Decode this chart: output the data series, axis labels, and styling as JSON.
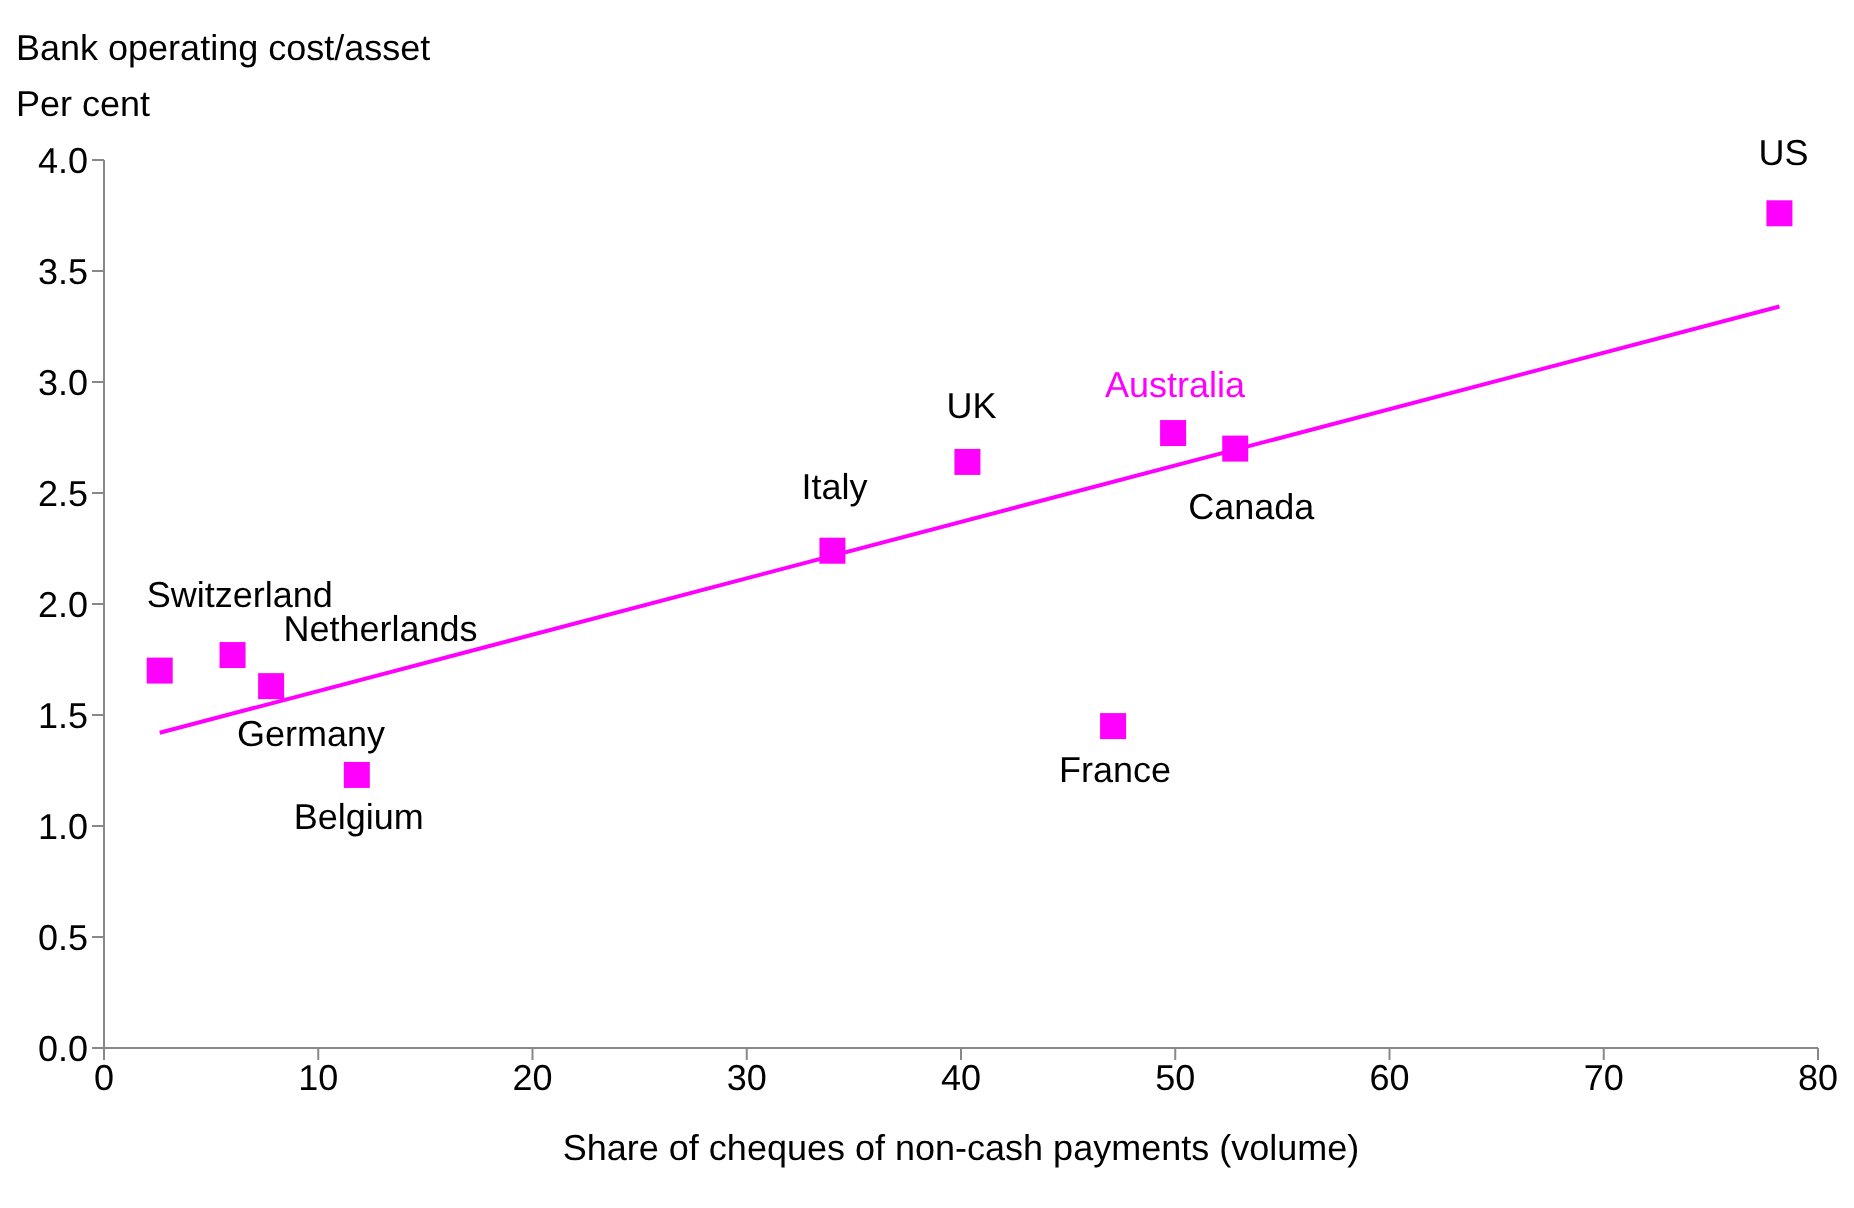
{
  "chart_data": {
    "type": "scatter",
    "ylabel": "Bank operating cost/asset\nPer cent",
    "xlabel": "Share of cheques of non-cash payments (volume)",
    "series": [
      {
        "color": "#ff00ff",
        "marker": "square",
        "x": [
          2.6,
          6.0,
          7.8,
          11.8,
          34.0,
          40.3,
          49.9,
          52.8,
          47.1,
          78.2
        ],
        "values": [
          1.7,
          1.77,
          1.63,
          1.23,
          2.24,
          2.64,
          2.77,
          2.7,
          1.45,
          3.76
        ]
      },
      {
        "type": "line",
        "marker": "none",
        "color": "#ff00ff",
        "x": [
          2.6,
          78.2
        ],
        "values": [
          1.42,
          3.34
        ]
      }
    ],
    "annotations": [
      {
        "text": "Switzerland",
        "x": 2.6,
        "y": 1.7
      },
      {
        "text": "Netherlands",
        "x": 6.0,
        "y": 1.77
      },
      {
        "text": "Germany",
        "x": 7.8,
        "y": 1.63
      },
      {
        "text": "Belgium",
        "x": 11.8,
        "y": 1.23
      },
      {
        "text": "Italy",
        "x": 34.0,
        "y": 2.24
      },
      {
        "text": "UK",
        "x": 40.3,
        "y": 2.64
      },
      {
        "text": "Australia",
        "x": 49.9,
        "y": 2.77
      },
      {
        "text": "Canada",
        "x": 52.8,
        "y": 2.7
      },
      {
        "text": "France",
        "x": 47.1,
        "y": 1.45
      },
      {
        "text": "US",
        "x": 78.2,
        "y": 3.76
      }
    ],
    "xlim": [
      0,
      80
    ],
    "xticks": [
      0,
      10,
      20,
      30,
      40,
      50,
      60,
      70,
      80
    ],
    "ylim": [
      0,
      4
    ],
    "yticks": [
      {
        "value": 0,
        "label": "0.0"
      },
      {
        "value": 0.5,
        "label": "0.5"
      },
      {
        "value": 1,
        "label": "1.0"
      },
      {
        "value": 1.5,
        "label": "1.5"
      },
      {
        "value": 2,
        "label": "2.0"
      },
      {
        "value": 2.5,
        "label": "2.5"
      },
      {
        "value": 3,
        "label": "3.0"
      },
      {
        "value": 3.5,
        "label": "3.5"
      },
      {
        "value": 4,
        "label": "4.0"
      }
    ],
    "grid": false,
    "legend": false
  }
}
